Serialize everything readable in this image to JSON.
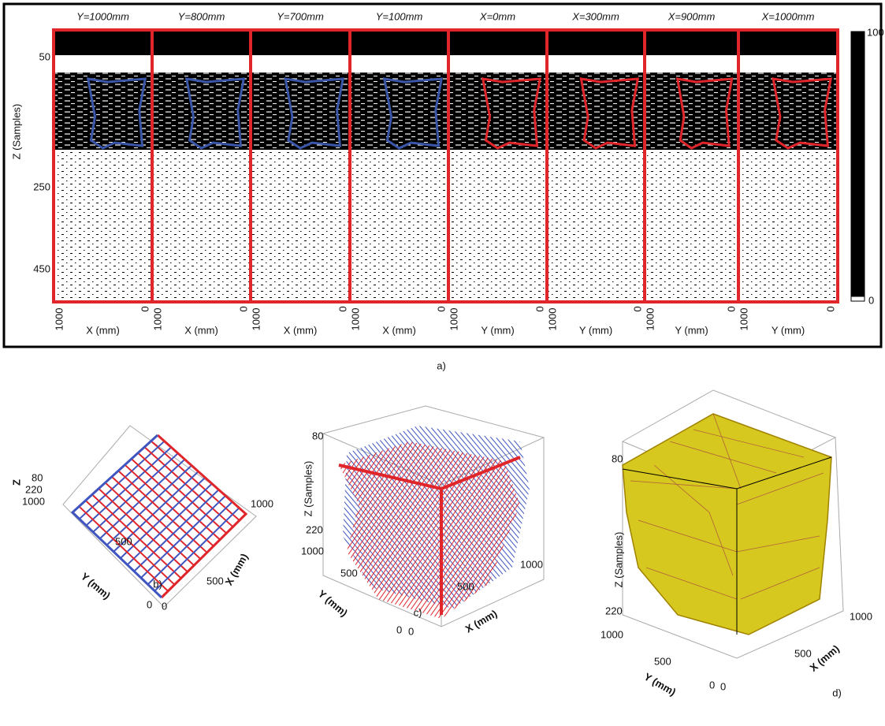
{
  "figure_a": {
    "caption": "a)",
    "z_label": "Z (Samples)",
    "z_ticks": [
      "50",
      "250",
      "450"
    ],
    "colorbar_ticks": [
      "100",
      "0"
    ],
    "sections": [
      {
        "title": "Y=1000mm",
        "axis_start": "1000",
        "axis_end": "0",
        "axis_label": "X (mm)",
        "outline_color": "#3a56a8"
      },
      {
        "title": "Y=800mm",
        "axis_start": "1000",
        "axis_end": "0",
        "axis_label": "X (mm)",
        "outline_color": "#3a56a8"
      },
      {
        "title": "Y=700mm",
        "axis_start": "1000",
        "axis_end": "0",
        "axis_label": "X (mm)",
        "outline_color": "#3a56a8"
      },
      {
        "title": "Y=100mm",
        "axis_start": "1000",
        "axis_end": "0",
        "axis_label": "X (mm)",
        "outline_color": "#3a56a8"
      },
      {
        "title": "X=0mm",
        "axis_start": "1000",
        "axis_end": "0",
        "axis_label": "Y (mm)",
        "outline_color": "#e0262b"
      },
      {
        "title": "X=300mm",
        "axis_start": "1000",
        "axis_end": "0",
        "axis_label": "Y (mm)",
        "outline_color": "#e0262b"
      },
      {
        "title": "X=900mm",
        "axis_start": "1000",
        "axis_end": "0",
        "axis_label": "Y (mm)",
        "outline_color": "#e0262b"
      },
      {
        "title": "X=1000mm",
        "axis_start": "1000",
        "axis_end": "0",
        "axis_label": "Y (mm)",
        "outline_color": "#e0262b"
      }
    ]
  },
  "figure_b": {
    "caption": "b)",
    "z_label": "Z",
    "z_ticks": [
      "80",
      "220"
    ],
    "y_label": "Y (mm)",
    "y_ticks": [
      "1000",
      "500",
      "0"
    ],
    "x_label": "X (mm)",
    "x_ticks": [
      "0",
      "500",
      "1000"
    ]
  },
  "figure_c": {
    "caption": "c)",
    "z_label": "Z (Samples)",
    "z_ticks": [
      "80",
      "220"
    ],
    "y_label": "Y (mm)",
    "y_ticks": [
      "1000",
      "500",
      "0"
    ],
    "x_label": "X (mm)",
    "x_ticks": [
      "0",
      "500",
      "1000"
    ]
  },
  "figure_d": {
    "caption": "d)",
    "z_label": "Z (Samples)",
    "z_ticks": [
      "80",
      "220"
    ],
    "y_label": "Y (mm)",
    "y_ticks": [
      "1000",
      "500",
      "0"
    ],
    "x_label": "X (mm)",
    "x_ticks": [
      "0",
      "500",
      "1000"
    ]
  }
}
